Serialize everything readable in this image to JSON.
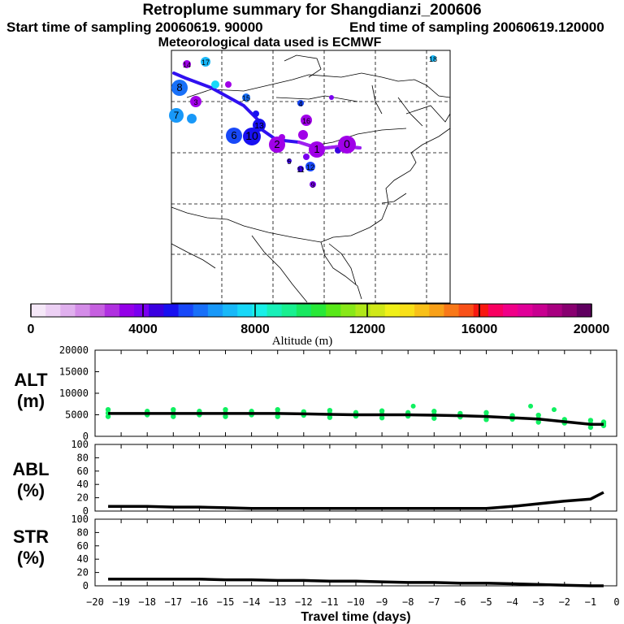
{
  "header": {
    "title": "Retroplume summary for Shangdianzi_200606",
    "start": "Start time of sampling 20060619. 90000",
    "end": "End time of sampling 20060619.120000",
    "met": "Meteorological data used is ECMWF"
  },
  "colorbar": {
    "label": "Altitude (m)",
    "ticks": [
      "0",
      "4000",
      "8000",
      "12000",
      "16000",
      "20000"
    ],
    "colors": [
      "#f5e8f8",
      "#ecd0f4",
      "#e0b0ee",
      "#d48ce8",
      "#c660e0",
      "#b030e0",
      "#9400e8",
      "#7a00f0",
      "#3a00e0",
      "#1810f0",
      "#1848f8",
      "#1870f8",
      "#1898f8",
      "#18b8f8",
      "#18d8f8",
      "#18f0e8",
      "#18f0b8",
      "#18f090",
      "#18e860",
      "#28e838",
      "#58e818",
      "#88e818",
      "#b0e818",
      "#d0e818",
      "#f0f018",
      "#f8e018",
      "#f8c018",
      "#f8a018",
      "#f87818",
      "#f85018",
      "#f81810",
      "#f80060",
      "#f00088",
      "#e00098",
      "#c80090",
      "#a80080",
      "#880070",
      "#600060"
    ]
  },
  "map": {
    "labels": [
      "0",
      "1",
      "2",
      "3",
      "4",
      "5",
      "6",
      "7",
      "8",
      "9",
      "10",
      "11",
      "12",
      "13",
      "14",
      "15",
      "16",
      "17",
      "18"
    ]
  },
  "panels": [
    {
      "name": "ALT",
      "unit": "(m)",
      "yticks": [
        "20000",
        "15000",
        "10000",
        "5000",
        "0"
      ]
    },
    {
      "name": "ABL",
      "unit": "(%)",
      "yticks": [
        "100",
        "80",
        "60",
        "40",
        "20",
        "0"
      ]
    },
    {
      "name": "STR",
      "unit": "(%)",
      "yticks": [
        "100",
        "80",
        "60",
        "40",
        "20",
        "0"
      ]
    }
  ],
  "chart_data": {
    "type": "line",
    "xlabel": "Travel time (days)",
    "xlim": [
      -20,
      0
    ],
    "xticks": [
      "−20",
      "−19",
      "−18",
      "−17",
      "−16",
      "−15",
      "−14",
      "−13",
      "−12",
      "−11",
      "−10",
      "−9",
      "−8",
      "−7",
      "−6",
      "−5",
      "−4",
      "−3",
      "−2",
      "−1",
      "0"
    ],
    "series": [
      {
        "name": "ALT",
        "ylabel": "Altitude (m)",
        "ylim": [
          0,
          20000
        ],
        "x": [
          -19.5,
          -18,
          -17,
          -16,
          -15,
          -14,
          -13,
          -12,
          -11,
          -10,
          -9,
          -8,
          -7,
          -6,
          -5,
          -4,
          -3,
          -2,
          -1,
          -0.5
        ],
        "y": [
          5300,
          5300,
          5300,
          5300,
          5300,
          5300,
          5300,
          5200,
          5100,
          5000,
          5000,
          5000,
          4900,
          4800,
          4600,
          4300,
          4000,
          3400,
          2800,
          2800
        ]
      },
      {
        "name": "ABL",
        "ylabel": "ABL (%)",
        "ylim": [
          0,
          100
        ],
        "x": [
          -19.5,
          -18,
          -17,
          -16,
          -15,
          -14,
          -13,
          -12,
          -11,
          -10,
          -9,
          -8,
          -7,
          -6,
          -5,
          -4,
          -3,
          -2,
          -1,
          -0.5
        ],
        "y": [
          7,
          7,
          6,
          6,
          5,
          4,
          4,
          4,
          4,
          4,
          4,
          4,
          4,
          4,
          4,
          7,
          11,
          15,
          18,
          28
        ]
      },
      {
        "name": "STR",
        "ylabel": "STR (%)",
        "ylim": [
          0,
          100
        ],
        "x": [
          -19.5,
          -18,
          -17,
          -16,
          -15,
          -14,
          -13,
          -12,
          -11,
          -10,
          -9,
          -8,
          -7,
          -6,
          -5,
          -4,
          -3,
          -2,
          -1,
          -0.5
        ],
        "y": [
          10,
          10,
          10,
          10,
          9,
          9,
          8,
          8,
          7,
          7,
          6,
          5,
          5,
          4,
          4,
          3,
          2,
          1,
          0,
          0
        ]
      }
    ]
  }
}
